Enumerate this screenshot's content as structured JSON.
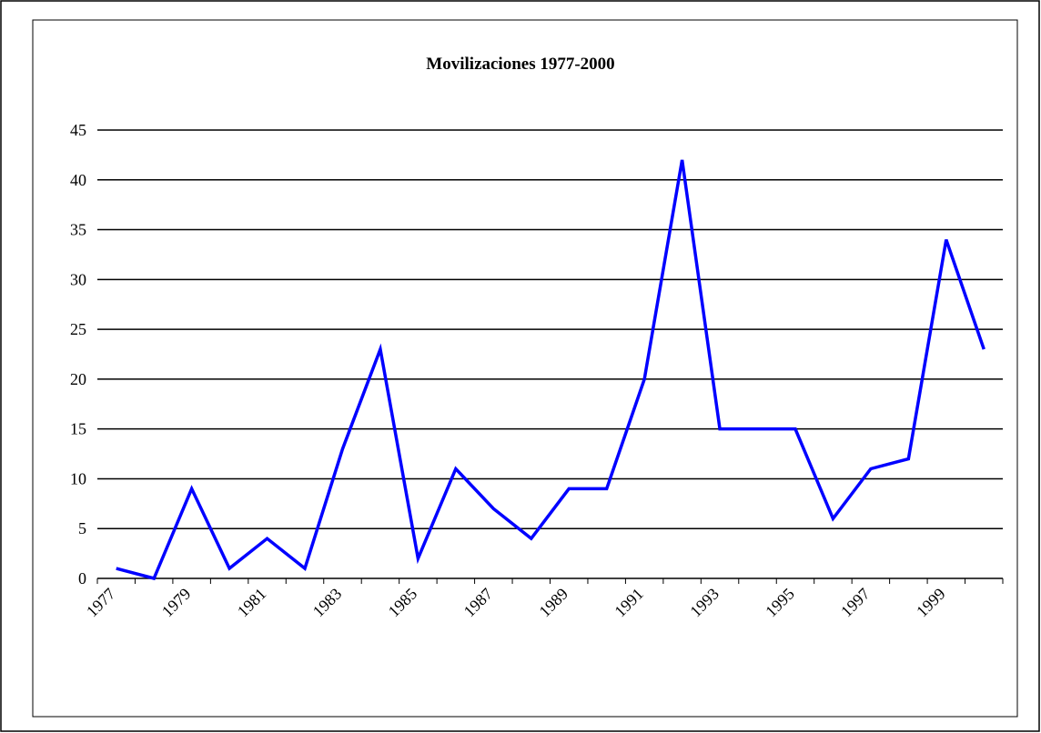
{
  "chart_data": {
    "type": "line",
    "title": "Movilizaciones 1977-2000",
    "categories": [
      "1977",
      null,
      "1979",
      null,
      "1981",
      null,
      "1983",
      null,
      "1985",
      null,
      "1987",
      null,
      "1989",
      null,
      "1991",
      null,
      "1993",
      null,
      "1995",
      null,
      "1997",
      null,
      "1999",
      null
    ],
    "series": [
      {
        "name": "Movilizaciones",
        "color": "#0000ff",
        "values": [
          1,
          0,
          9,
          1,
          4,
          1,
          13,
          23,
          2,
          11,
          7,
          4,
          9,
          9,
          20,
          42,
          15,
          15,
          15,
          6,
          11,
          12,
          34,
          23
        ]
      }
    ],
    "ylim": [
      0,
      45
    ],
    "yticks": [
      0,
      5,
      10,
      15,
      20,
      25,
      30,
      35,
      40,
      45
    ],
    "grid": true
  }
}
